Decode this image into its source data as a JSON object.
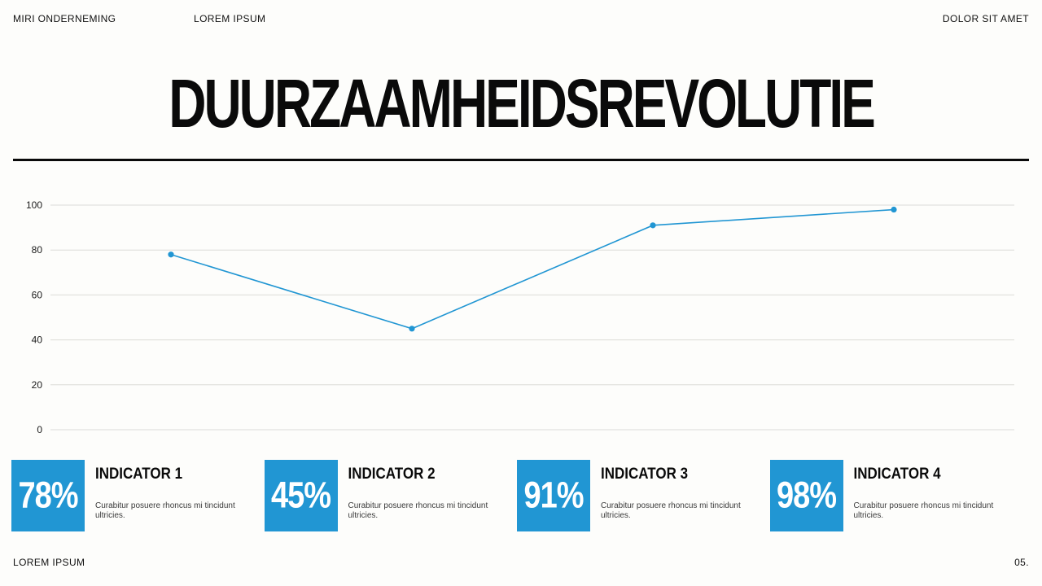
{
  "header": {
    "left": "MIRI ONDERNEMING",
    "center": "LOREM IPSUM",
    "right": "DOLOR SIT AMET"
  },
  "title": "DUURZAAMHEIDSREVOLUTIE",
  "chart_data": {
    "type": "line",
    "x": [
      1,
      2,
      3,
      4
    ],
    "values": [
      78,
      45,
      91,
      98
    ],
    "title": "",
    "xlabel": "",
    "ylabel": "",
    "ylim": [
      0,
      100
    ],
    "yticks": [
      0,
      20,
      40,
      60,
      80,
      100
    ],
    "grid": true,
    "legend": "none",
    "line_color": "#2196d3",
    "marker_color": "#2196d3",
    "gridline_color": "#dcdcd8",
    "tick_label_color": "#1a1a1a"
  },
  "indicators": [
    {
      "value": "78%",
      "label": "INDICATOR 1",
      "description": "Curabitur posuere rhoncus mi tincidunt ultricies."
    },
    {
      "value": "45%",
      "label": "INDICATOR 2",
      "description": "Curabitur posuere rhoncus mi tincidunt ultricies."
    },
    {
      "value": "91%",
      "label": "INDICATOR 3",
      "description": "Curabitur posuere rhoncus mi tincidunt ultricies."
    },
    {
      "value": "98%",
      "label": "INDICATOR 4",
      "description": "Curabitur posuere rhoncus mi tincidunt ultricies."
    }
  ],
  "footer": {
    "left": "LOREM IPSUM",
    "page": "05."
  },
  "colors": {
    "accent": "#2196d3",
    "text": "#0a0a0a",
    "background": "#fdfdfb"
  }
}
